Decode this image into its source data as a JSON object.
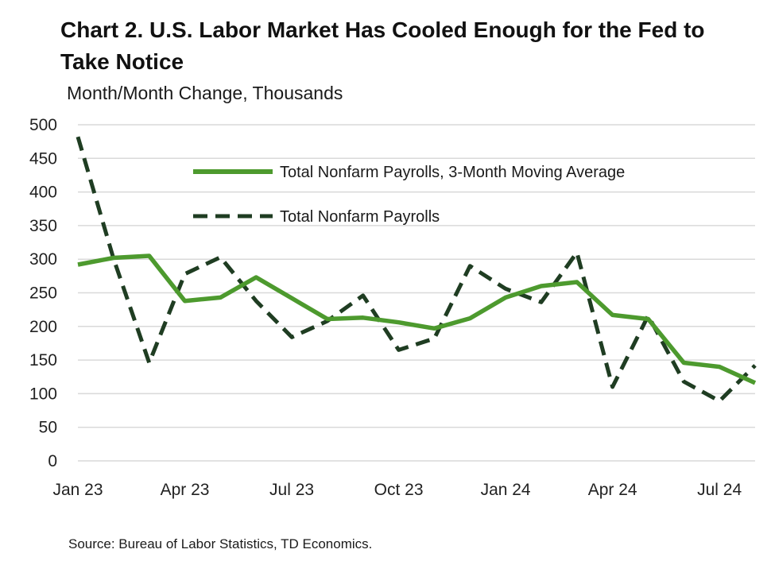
{
  "chart_data": {
    "type": "line",
    "title": "Chart 2. U.S. Labor Market Has Cooled Enough for the Fed to Take Notice",
    "subtitle": "Month/Month Change, Thousands",
    "source": "Source: Bureau of Labor Statistics, TD Economics.",
    "x": [
      "Jan 23",
      "Feb 23",
      "Mar 23",
      "Apr 23",
      "May 23",
      "Jun 23",
      "Jul 23",
      "Aug 23",
      "Sep 23",
      "Oct 23",
      "Nov 23",
      "Dec 23",
      "Jan 24",
      "Feb 24",
      "Mar 24",
      "Apr 24",
      "May 24",
      "Jun 24",
      "Jul 24",
      "Aug 24"
    ],
    "xticks": [
      {
        "label": "Jan 23",
        "index": 0
      },
      {
        "label": "Apr 23",
        "index": 3
      },
      {
        "label": "Jul 23",
        "index": 6
      },
      {
        "label": "Oct 23",
        "index": 9
      },
      {
        "label": "Jan 24",
        "index": 12
      },
      {
        "label": "Apr 24",
        "index": 15
      },
      {
        "label": "Jul 24",
        "index": 18
      }
    ],
    "ylim": [
      0,
      500
    ],
    "yticks": [
      0,
      50,
      100,
      150,
      200,
      250,
      300,
      350,
      400,
      450,
      500
    ],
    "grid": "horizontal",
    "legend_position": "top-center",
    "series": [
      {
        "name": "Total Nonfarm Payrolls, 3-Month Moving Average",
        "style": "solid",
        "color": "#4d9a2e",
        "values": [
          292,
          302,
          305,
          238,
          243,
          273,
          242,
          211,
          213,
          206,
          197,
          212,
          243,
          260,
          266,
          217,
          211,
          146,
          140,
          116
        ]
      },
      {
        "name": "Total Nonfarm Payrolls",
        "style": "dashed",
        "color": "#1f3d22",
        "values": [
          482,
          301,
          146,
          278,
          303,
          238,
          184,
          208,
          246,
          165,
          182,
          290,
          256,
          236,
          310,
          110,
          216,
          118,
          89,
          142
        ]
      }
    ]
  }
}
